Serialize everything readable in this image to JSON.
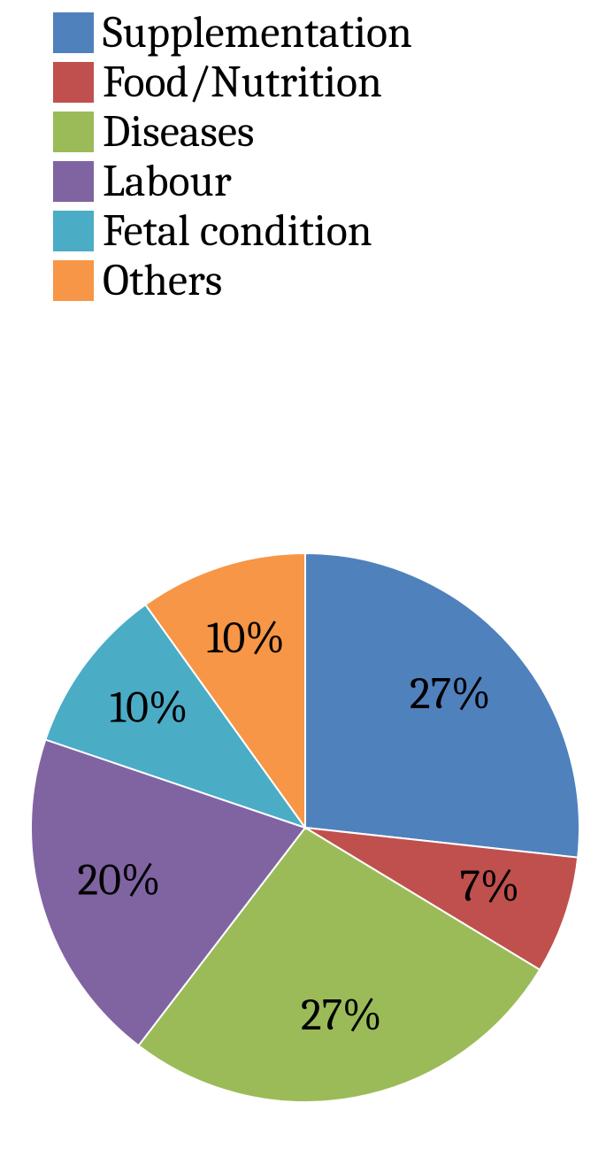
{
  "chart": {
    "type": "pie",
    "background_color": "#ffffff",
    "legend": {
      "swatch_size": 46,
      "label_fontsize": 50,
      "items": [
        {
          "label": "Supplementation",
          "color": "#4f81bd"
        },
        {
          "label": "Food/Nutrition",
          "color": "#c0504d"
        },
        {
          "label": "Diseases",
          "color": "#9bbb59"
        },
        {
          "label": "Labour",
          "color": "#8064a2"
        },
        {
          "label": "Fetal condition",
          "color": "#4bacc6"
        },
        {
          "label": "Others",
          "color": "#f79646"
        }
      ]
    },
    "pie": {
      "radius": 310,
      "start_angle_deg": -90,
      "direction": "clockwise",
      "slice_label_fontsize": 50,
      "slice_label_radius": 220,
      "slices": [
        {
          "label": "27%",
          "value": 27,
          "color": "#4f81bd"
        },
        {
          "label": "7%",
          "value": 7,
          "color": "#c0504d"
        },
        {
          "label": "27%",
          "value": 27,
          "color": "#9bbb59"
        },
        {
          "label": "20%",
          "value": 20,
          "color": "#8064a2"
        },
        {
          "label": "10%",
          "value": 10,
          "color": "#4bacc6"
        },
        {
          "label": "10%",
          "value": 10,
          "color": "#f79646"
        }
      ]
    }
  }
}
